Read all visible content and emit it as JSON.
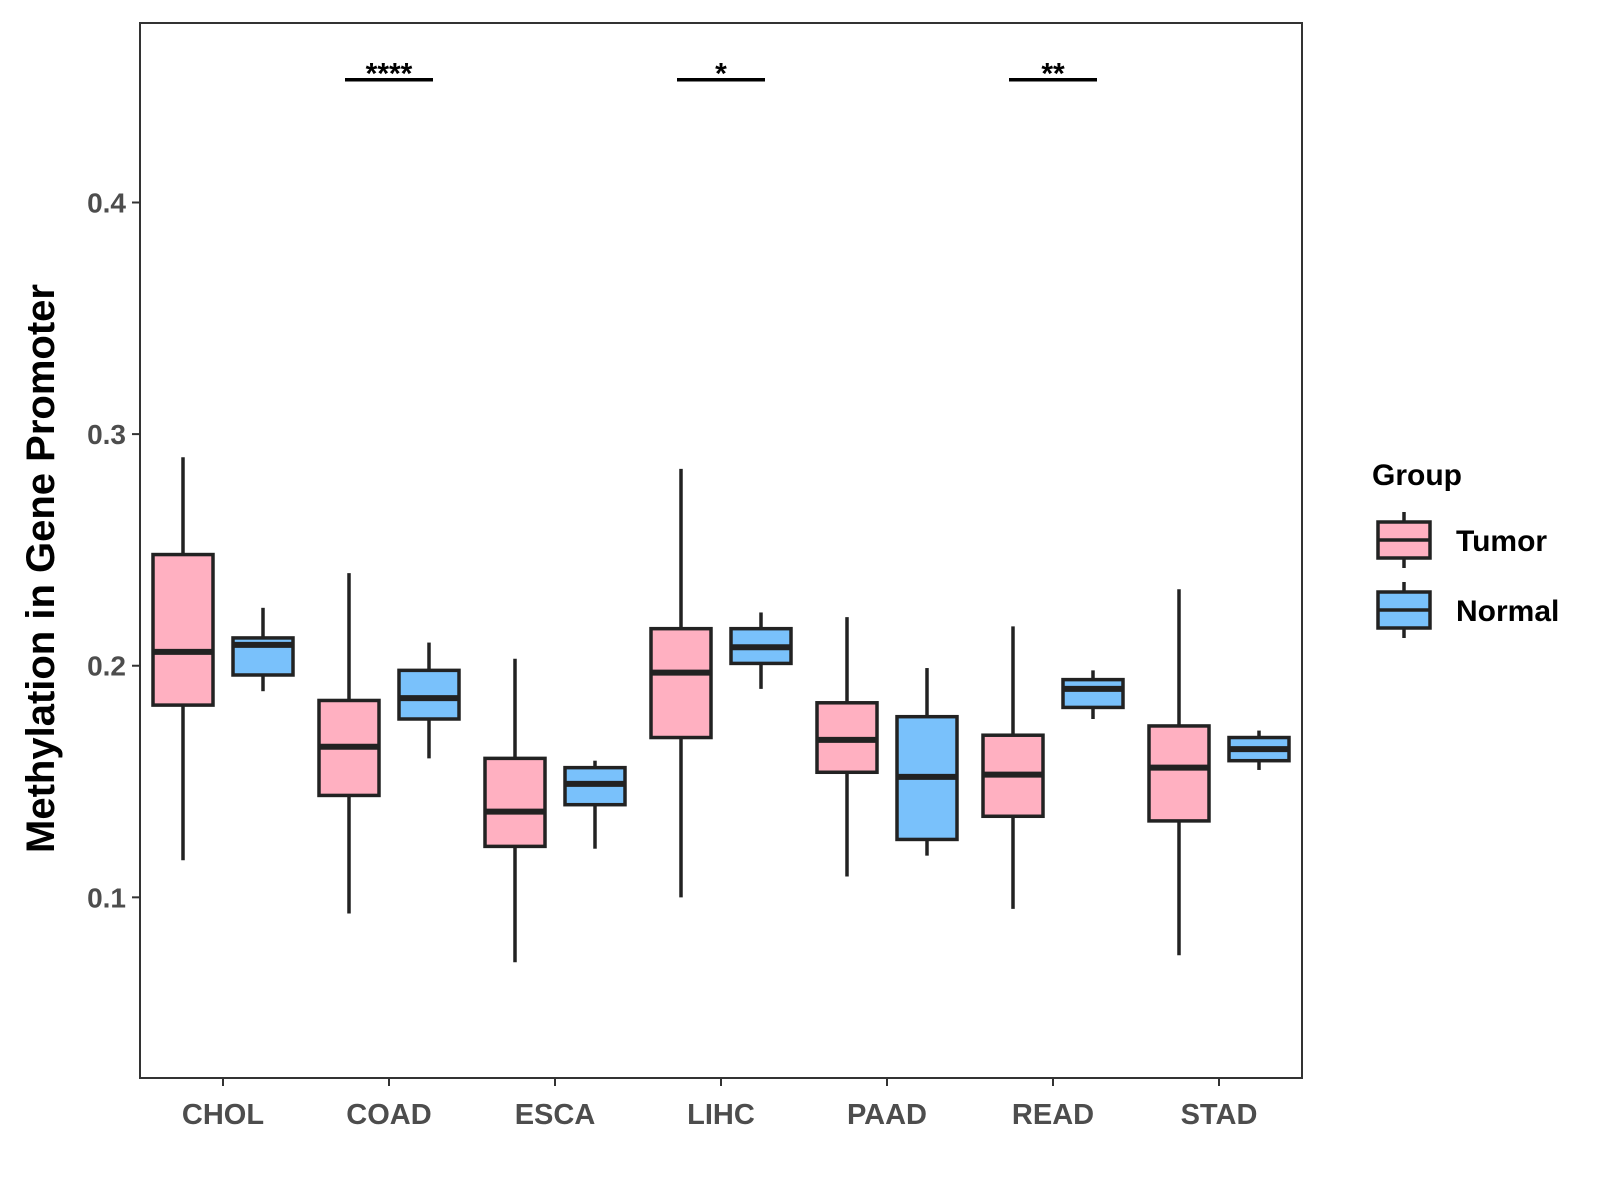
{
  "chart_data": {
    "type": "boxplot",
    "title": "",
    "xlabel": "",
    "ylabel": "Methylation in Gene Promoter",
    "ylim": [
      0.022,
      0.4775
    ],
    "yticks": [
      0.1,
      0.2,
      0.3,
      0.4
    ],
    "ytick_labels": [
      "0.1",
      "0.2",
      "0.3",
      "0.4"
    ],
    "categories": [
      "CHOL",
      "COAD",
      "ESCA",
      "LIHC",
      "PAAD",
      "READ",
      "STAD"
    ],
    "legend": {
      "title": "Group",
      "position": "right",
      "entries": [
        "Tumor",
        "Normal"
      ]
    },
    "colors": {
      "Tumor": "#ffb0c1",
      "Normal": "#79c1fb",
      "outline": "#222222"
    },
    "series": [
      {
        "name": "Tumor",
        "boxes": [
          {
            "category": "CHOL",
            "min": 0.116,
            "q1": 0.183,
            "median": 0.206,
            "q3": 0.248,
            "max": 0.29
          },
          {
            "category": "COAD",
            "min": 0.093,
            "q1": 0.144,
            "median": 0.165,
            "q3": 0.185,
            "max": 0.24
          },
          {
            "category": "ESCA",
            "min": 0.072,
            "q1": 0.122,
            "median": 0.137,
            "q3": 0.16,
            "max": 0.203
          },
          {
            "category": "LIHC",
            "min": 0.1,
            "q1": 0.169,
            "median": 0.197,
            "q3": 0.216,
            "max": 0.285
          },
          {
            "category": "PAAD",
            "min": 0.109,
            "q1": 0.154,
            "median": 0.168,
            "q3": 0.184,
            "max": 0.221
          },
          {
            "category": "READ",
            "min": 0.095,
            "q1": 0.135,
            "median": 0.153,
            "q3": 0.17,
            "max": 0.217
          },
          {
            "category": "STAD",
            "min": 0.075,
            "q1": 0.133,
            "median": 0.156,
            "q3": 0.174,
            "max": 0.233
          }
        ]
      },
      {
        "name": "Normal",
        "boxes": [
          {
            "category": "CHOL",
            "min": 0.189,
            "q1": 0.196,
            "median": 0.209,
            "q3": 0.212,
            "max": 0.225
          },
          {
            "category": "COAD",
            "min": 0.16,
            "q1": 0.177,
            "median": 0.186,
            "q3": 0.198,
            "max": 0.21
          },
          {
            "category": "ESCA",
            "min": 0.121,
            "q1": 0.14,
            "median": 0.149,
            "q3": 0.156,
            "max": 0.159
          },
          {
            "category": "LIHC",
            "min": 0.19,
            "q1": 0.201,
            "median": 0.208,
            "q3": 0.216,
            "max": 0.223
          },
          {
            "category": "PAAD",
            "min": 0.118,
            "q1": 0.125,
            "median": 0.152,
            "q3": 0.178,
            "max": 0.199
          },
          {
            "category": "READ",
            "min": 0.177,
            "q1": 0.182,
            "median": 0.19,
            "q3": 0.194,
            "max": 0.198
          },
          {
            "category": "STAD",
            "min": 0.155,
            "q1": 0.159,
            "median": 0.164,
            "q3": 0.169,
            "max": 0.172
          }
        ]
      }
    ],
    "significance": [
      {
        "category": "COAD",
        "label": "****",
        "y": 0.453
      },
      {
        "category": "LIHC",
        "label": "*",
        "y": 0.453
      },
      {
        "category": "READ",
        "label": "**",
        "y": 0.453
      }
    ]
  }
}
